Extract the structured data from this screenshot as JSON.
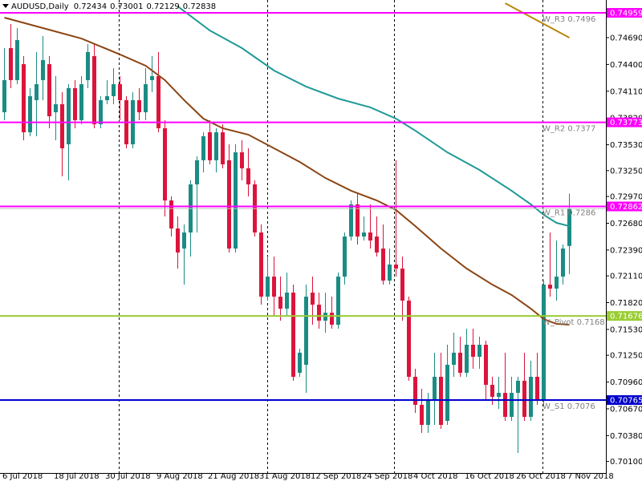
{
  "chart_data": {
    "type": "candlestick",
    "title": "AUDUSD,Daily",
    "categories": [
      "6 Jul 2018",
      null,
      null,
      null,
      null,
      null,
      null,
      null,
      "18 Jul 2018",
      null,
      null,
      null,
      null,
      null,
      null,
      null,
      "30 Jul 2018",
      null,
      null,
      null,
      null,
      null,
      null,
      null,
      "9 Aug 2018",
      null,
      null,
      null,
      null,
      null,
      null,
      null,
      "21 Aug 2018",
      null,
      null,
      null,
      null,
      null,
      null,
      null,
      "31 Aug 2018",
      null,
      null,
      null,
      null,
      null,
      null,
      null,
      "12 Sep 2018",
      null,
      null,
      null,
      null,
      null,
      null,
      null,
      "24 Sep 2018",
      null,
      null,
      null,
      null,
      null,
      null,
      null,
      "4 Oct 2018",
      null,
      null,
      null,
      null,
      null,
      null,
      null,
      "16 Oct 2018",
      null,
      null,
      null,
      null,
      null,
      null,
      null,
      "26 Oct 2018",
      null,
      null,
      null,
      null,
      null,
      null,
      null,
      "7 Nov 2018"
    ],
    "open": [
      0.73882,
      0.74577,
      0.7423,
      0.74403,
      0.73665,
      0.74013,
      0.7423,
      0.74403,
      0.73882,
      0.73969,
      0.73535,
      0.74143,
      0.73796,
      0.7423,
      0.7449,
      0.73752,
      0.74013,
      0.74056,
      0.74186,
      0.74013,
      0.73535,
      0.74013,
      0.73882,
      0.7423,
      0.74273,
      0.73709,
      0.72927,
      0.72623,
      0.72406,
      0.7258,
      0.73101,
      0.73362,
      0.73665,
      0.73362,
      0.73665,
      0.73362,
      0.72406,
      0.73448,
      0.73275,
      0.73101,
      0.7258,
      0.71885,
      0.72102,
      0.71885,
      0.71755,
      0.71929,
      0.7106,
      0.71147,
      0.71929,
      0.71798,
      0.71625,
      0.71711,
      0.71581,
      0.72102,
      0.72536,
      0.72884,
      0.72536,
      0.7258,
      0.72536,
      0.72406,
      0.72059,
      0.72233,
      0.72189,
      0.71842,
      0.71017,
      0.70713,
      0.70496,
      0.70757,
      0.71017,
      0.70539,
      0.71147,
      0.71278,
      0.7106,
      0.71364,
      0.71234,
      0.71364,
      0.7093,
      0.708,
      0.70843,
      0.70583,
      0.70843,
      0.70974,
      0.70583,
      0.71017,
      0.70757,
      0.72015,
      0.71972,
      0.72102,
      0.72434
    ],
    "high": [
      0.74577,
      0.74838,
      0.74794,
      0.7449,
      0.74143,
      0.74534,
      0.74707,
      0.7449,
      0.74273,
      0.74099,
      0.74186,
      0.7423,
      0.74273,
      0.7462,
      0.7462,
      0.74056,
      0.7423,
      0.7436,
      0.74273,
      0.74056,
      0.74099,
      0.74143,
      0.7436,
      0.7449,
      0.74534,
      0.73796,
      0.72971,
      0.72754,
      0.72667,
      0.73144,
      0.73405,
      0.73665,
      0.73796,
      0.73709,
      0.73752,
      0.73535,
      0.73535,
      0.73579,
      0.73492,
      0.73144,
      0.72667,
      0.72319,
      0.72319,
      0.72102,
      0.72146,
      0.72015,
      0.71321,
      0.72015,
      0.72102,
      0.71929,
      0.71929,
      0.71885,
      0.72146,
      0.7258,
      0.72927,
      0.73014,
      0.72754,
      0.72884,
      0.72754,
      0.72667,
      0.72406,
      0.73362,
      0.72319,
      0.71885,
      0.71104,
      0.70887,
      0.70843,
      0.71278,
      0.71278,
      0.71364,
      0.71495,
      0.71451,
      0.71538,
      0.71538,
      0.71451,
      0.71408,
      0.71017,
      0.71017,
      0.71278,
      0.71017,
      0.71017,
      0.71278,
      0.71191,
      0.71278,
      0.72059,
      0.7258,
      0.72493,
      0.7245,
      0.73001
    ],
    "low": [
      0.73796,
      0.74143,
      0.74186,
      0.73579,
      0.73622,
      0.73622,
      0.74013,
      0.73709,
      0.73579,
      0.73188,
      0.73144,
      0.73709,
      0.73752,
      0.74143,
      0.73709,
      0.73709,
      0.73969,
      0.73969,
      0.73796,
      0.73492,
      0.73492,
      0.73796,
      0.73796,
      0.74099,
      0.73665,
      0.72754,
      0.72536,
      0.72189,
      0.72015,
      0.72319,
      0.7258,
      0.73231,
      0.73318,
      0.73231,
      0.73275,
      0.72363,
      0.72363,
      0.73144,
      0.72971,
      0.72536,
      0.71798,
      0.71842,
      0.71668,
      0.71625,
      0.71668,
      0.70974,
      0.71017,
      0.70843,
      0.71581,
      0.71538,
      0.71495,
      0.71538,
      0.71538,
      0.72015,
      0.72493,
      0.7245,
      0.72493,
      0.72406,
      0.72319,
      0.72015,
      0.72015,
      0.72102,
      0.71625,
      0.70974,
      0.70626,
      0.70409,
      0.70409,
      0.70496,
      0.70453,
      0.70496,
      0.71017,
      0.71017,
      0.71017,
      0.71104,
      0.71104,
      0.70757,
      0.70713,
      0.7067,
      0.70539,
      0.70539,
      0.70192,
      0.70539,
      0.70539,
      0.70713,
      0.70713,
      0.71885,
      0.71842,
      0.72015,
      0.72129
    ],
    "close": [
      0.7423,
      0.7423,
      0.74664,
      0.73665,
      0.74056,
      0.74186,
      0.74447,
      0.73839,
      0.73969,
      0.73492,
      0.74143,
      0.73796,
      0.74186,
      0.74534,
      0.73752,
      0.74013,
      0.74056,
      0.74186,
      0.74013,
      0.73535,
      0.74013,
      0.73882,
      0.74186,
      0.74273,
      0.73709,
      0.72927,
      0.72623,
      0.72363,
      0.7258,
      0.73101,
      0.73362,
      0.73622,
      0.73362,
      0.73665,
      0.73318,
      0.72406,
      0.73448,
      0.73275,
      0.73101,
      0.7258,
      0.71885,
      0.72102,
      0.71885,
      0.71755,
      0.71929,
      0.71017,
      0.71278,
      0.71885,
      0.71798,
      0.71625,
      0.71711,
      0.71581,
      0.72102,
      0.72536,
      0.72884,
      0.72536,
      0.7258,
      0.72493,
      0.72363,
      0.72059,
      0.72233,
      0.72189,
      0.71842,
      0.71017,
      0.70713,
      0.70496,
      0.70757,
      0.71017,
      0.70496,
      0.71147,
      0.71278,
      0.7106,
      0.71364,
      0.71234,
      0.71364,
      0.7093,
      0.708,
      0.70843,
      0.70583,
      0.70843,
      0.70974,
      0.70583,
      0.71017,
      0.70757,
      0.72015,
      0.71972,
      0.72102,
      0.72406,
      0.72838
    ],
    "up_color": "#1b8c84",
    "down_color": "#dc143c",
    "lines": [
      {
        "color": "#1f9a96",
        "x": [
          27,
          32,
          37,
          42,
          47,
          52,
          57,
          61,
          64,
          69,
          74,
          79,
          82,
          84,
          86,
          88
        ],
        "values": [
          0.75029,
          0.74768,
          0.74577,
          0.74334,
          0.7416,
          0.7403,
          0.73935,
          0.73813,
          0.73683,
          0.73448,
          0.73257,
          0.73032,
          0.72884,
          0.72771,
          0.72684,
          0.72649
        ]
      },
      {
        "color": "#8b4513",
        "x": [
          0,
          6,
          12,
          18,
          22,
          25,
          28,
          31,
          34,
          38,
          42,
          46,
          50,
          54,
          58,
          61,
          64,
          68,
          72,
          76,
          79,
          82,
          84,
          86,
          88
        ],
        "values": [
          0.74907,
          0.74794,
          0.74681,
          0.74508,
          0.74386,
          0.7423,
          0.74013,
          0.73813,
          0.73709,
          0.73639,
          0.73492,
          0.73344,
          0.7317,
          0.73032,
          0.72927,
          0.72823,
          0.72649,
          0.72406,
          0.72189,
          0.72015,
          0.71903,
          0.71755,
          0.71642,
          0.7159,
          0.71581
        ]
      },
      {
        "color": "#b8860b",
        "x": [
          78,
          88
        ],
        "values": [
          0.75063,
          0.7469
        ]
      }
    ],
    "levels": [
      {
        "value": 0.74959,
        "label": "W_R3 0.7496",
        "color": "#ff00ff"
      },
      {
        "value": 0.73773,
        "label": "W_R2 0.7377",
        "color": "#ff00ff"
      },
      {
        "value": 0.72862,
        "label": "W_R1 0.7286",
        "color": "#ff00ff"
      },
      {
        "value": 0.71676,
        "label": "W_Pivot 0.7168",
        "color": "#9acd32"
      },
      {
        "value": 0.70765,
        "label": "W_S1 0.7076",
        "color": "#0000cd"
      }
    ],
    "price_line_color": "#c0c0c0",
    "ylim": [
      0.69975,
      0.75098
    ],
    "yticks": [
      {
        "value": 0.7469,
        "label": "0.74690"
      },
      {
        "value": 0.744,
        "label": "0.74400"
      },
      {
        "value": 0.7411,
        "label": "0.74110"
      },
      {
        "value": 0.7382,
        "label": "0.73820"
      },
      {
        "value": 0.7353,
        "label": "0.73530"
      },
      {
        "value": 0.7325,
        "label": "0.73250"
      },
      {
        "value": 0.7297,
        "label": "0.72970"
      },
      {
        "value": 0.7268,
        "label": "0.72680"
      },
      {
        "value": 0.7239,
        "label": "0.72390"
      },
      {
        "value": 0.7211,
        "label": "0.72110"
      },
      {
        "value": 0.7182,
        "label": "0.71820"
      },
      {
        "value": 0.7153,
        "label": "0.71530"
      },
      {
        "value": 0.7125,
        "label": "0.71250"
      },
      {
        "value": 0.7096,
        "label": "0.70960"
      },
      {
        "value": 0.7067,
        "label": "0.70670"
      },
      {
        "value": 0.7038,
        "label": "0.70380"
      },
      {
        "value": 0.701,
        "label": "0.70100"
      }
    ],
    "grid": false
  }
}
